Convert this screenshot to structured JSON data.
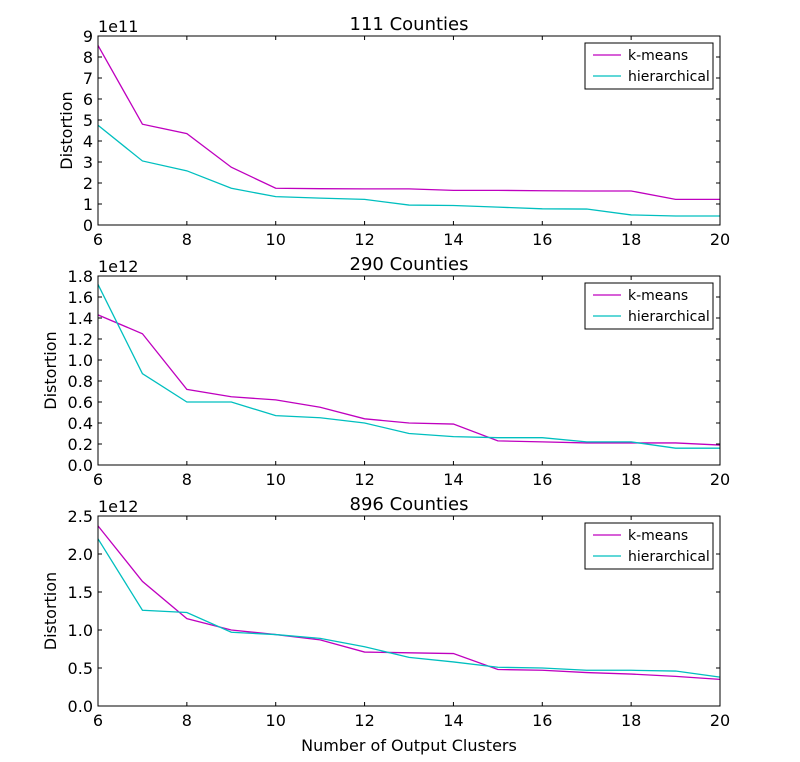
{
  "colors": {
    "kmeans": "#bf00bf",
    "hierarchical": "#00bfbf",
    "axis": "#000000",
    "background": "#ffffff"
  },
  "figure": {
    "xlabel": "Number of Output Clusters"
  },
  "chart_data": [
    {
      "type": "line",
      "title": "111 Counties",
      "xlabel": "",
      "ylabel": "Distortion",
      "offset_label": "1e11",
      "xlim": [
        6,
        20
      ],
      "ylim": [
        0,
        9
      ],
      "xticks": [
        "6",
        "8",
        "10",
        "12",
        "14",
        "16",
        "18",
        "20"
      ],
      "yticks": [
        "0",
        "1",
        "2",
        "3",
        "4",
        "5",
        "6",
        "7",
        "8",
        "9"
      ],
      "ytick_values": [
        0,
        1,
        2,
        3,
        4,
        5,
        6,
        7,
        8,
        9
      ],
      "legend_position": "top-right",
      "x": [
        6,
        7,
        8,
        9,
        10,
        11,
        12,
        13,
        14,
        15,
        16,
        17,
        18,
        19,
        20
      ],
      "series": [
        {
          "name": "k-means",
          "color": "#bf00bf",
          "values": [
            8.55,
            4.8,
            4.35,
            2.75,
            1.75,
            1.73,
            1.72,
            1.72,
            1.65,
            1.65,
            1.63,
            1.62,
            1.62,
            1.22,
            1.22
          ]
        },
        {
          "name": "hierarchical",
          "color": "#00bfbf",
          "values": [
            4.75,
            3.05,
            2.58,
            1.75,
            1.35,
            1.28,
            1.22,
            0.95,
            0.93,
            0.85,
            0.77,
            0.76,
            0.48,
            0.43,
            0.43
          ]
        }
      ]
    },
    {
      "type": "line",
      "title": "290 Counties",
      "xlabel": "",
      "ylabel": "Distortion",
      "offset_label": "1e12",
      "xlim": [
        6,
        20
      ],
      "ylim": [
        0,
        1.8
      ],
      "xticks": [
        "6",
        "8",
        "10",
        "12",
        "14",
        "16",
        "18",
        "20"
      ],
      "yticks": [
        "0.0",
        "0.2",
        "0.4",
        "0.6",
        "0.8",
        "1.0",
        "1.2",
        "1.4",
        "1.6",
        "1.8"
      ],
      "ytick_values": [
        0,
        0.2,
        0.4,
        0.6,
        0.8,
        1.0,
        1.2,
        1.4,
        1.6,
        1.8
      ],
      "legend_position": "top-right",
      "x": [
        6,
        7,
        8,
        9,
        10,
        11,
        12,
        13,
        14,
        15,
        16,
        17,
        18,
        19,
        20
      ],
      "series": [
        {
          "name": "k-means",
          "color": "#bf00bf",
          "values": [
            1.43,
            1.25,
            0.72,
            0.65,
            0.62,
            0.55,
            0.44,
            0.4,
            0.39,
            0.23,
            0.22,
            0.21,
            0.21,
            0.21,
            0.19
          ]
        },
        {
          "name": "hierarchical",
          "color": "#00bfbf",
          "values": [
            1.72,
            0.87,
            0.6,
            0.6,
            0.47,
            0.45,
            0.4,
            0.3,
            0.27,
            0.26,
            0.26,
            0.22,
            0.22,
            0.16,
            0.16
          ]
        }
      ]
    },
    {
      "type": "line",
      "title": "896 Counties",
      "xlabel": "Number of Output Clusters",
      "ylabel": "Distortion",
      "offset_label": "1e12",
      "xlim": [
        6,
        20
      ],
      "ylim": [
        0,
        2.5
      ],
      "xticks": [
        "6",
        "8",
        "10",
        "12",
        "14",
        "16",
        "18",
        "20"
      ],
      "yticks": [
        "0.0",
        "0.5",
        "1.0",
        "1.5",
        "2.0",
        "2.5"
      ],
      "ytick_values": [
        0,
        0.5,
        1.0,
        1.5,
        2.0,
        2.5
      ],
      "legend_position": "top-right",
      "x": [
        6,
        7,
        8,
        9,
        10,
        11,
        12,
        13,
        14,
        15,
        16,
        17,
        18,
        19,
        20
      ],
      "series": [
        {
          "name": "k-means",
          "color": "#bf00bf",
          "values": [
            2.37,
            1.64,
            1.15,
            1.0,
            0.94,
            0.87,
            0.71,
            0.7,
            0.69,
            0.48,
            0.47,
            0.44,
            0.42,
            0.39,
            0.35
          ]
        },
        {
          "name": "hierarchical",
          "color": "#00bfbf",
          "values": [
            2.2,
            1.26,
            1.23,
            0.97,
            0.94,
            0.89,
            0.78,
            0.64,
            0.58,
            0.51,
            0.5,
            0.47,
            0.47,
            0.46,
            0.38
          ]
        }
      ]
    }
  ]
}
